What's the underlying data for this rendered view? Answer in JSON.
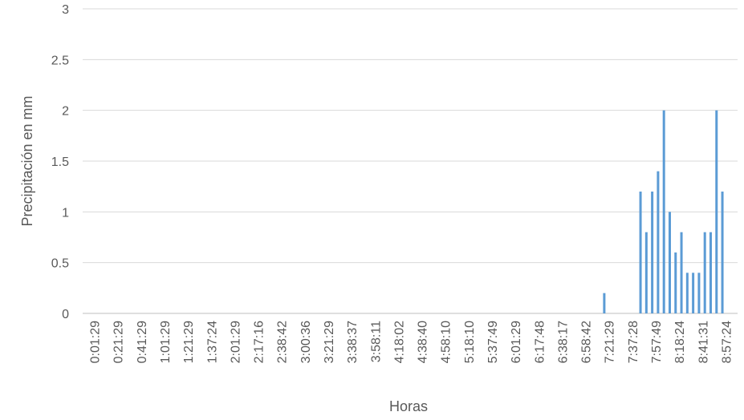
{
  "chart_data": {
    "type": "bar",
    "title": "",
    "xlabel": "Horas",
    "ylabel": "Precipitación en mm",
    "ylim": [
      0,
      3
    ],
    "yticks": [
      "0",
      "0.5",
      "1",
      "1.5",
      "2",
      "2.5",
      "3"
    ],
    "grid": true,
    "legend": "none",
    "bar_color": "#5B9BD5",
    "categories": [
      "0:01:29",
      "0:21:29",
      "0:41:29",
      "1:01:29",
      "1:21:29",
      "1:37:24",
      "2:01:29",
      "2:17:16",
      "2:38:42",
      "3:00:36",
      "3:21:29",
      "3:38:37",
      "3:58:11",
      "4:18:02",
      "4:38:40",
      "4:58:10",
      "5:18:10",
      "5:37:49",
      "6:01:29",
      "6:17:48",
      "6:38:17",
      "6:58:42",
      "7:21:29",
      "7:37:28",
      "7:57:49",
      "8:18:24",
      "8:41:31",
      "8:57:24"
    ],
    "bars": [
      {
        "x": 21.8,
        "value": 0.2
      },
      {
        "x": 23.35,
        "value": 1.2
      },
      {
        "x": 23.6,
        "value": 0.8
      },
      {
        "x": 23.85,
        "value": 1.2
      },
      {
        "x": 24.1,
        "value": 1.4
      },
      {
        "x": 24.35,
        "value": 2.0
      },
      {
        "x": 24.6,
        "value": 1.0
      },
      {
        "x": 24.85,
        "value": 0.6
      },
      {
        "x": 25.1,
        "value": 0.8
      },
      {
        "x": 25.35,
        "value": 0.4
      },
      {
        "x": 25.6,
        "value": 0.4
      },
      {
        "x": 25.85,
        "value": 0.4
      },
      {
        "x": 26.1,
        "value": 0.8
      },
      {
        "x": 26.35,
        "value": 0.8
      },
      {
        "x": 26.6,
        "value": 2.0
      },
      {
        "x": 26.85,
        "value": 1.2
      }
    ]
  }
}
